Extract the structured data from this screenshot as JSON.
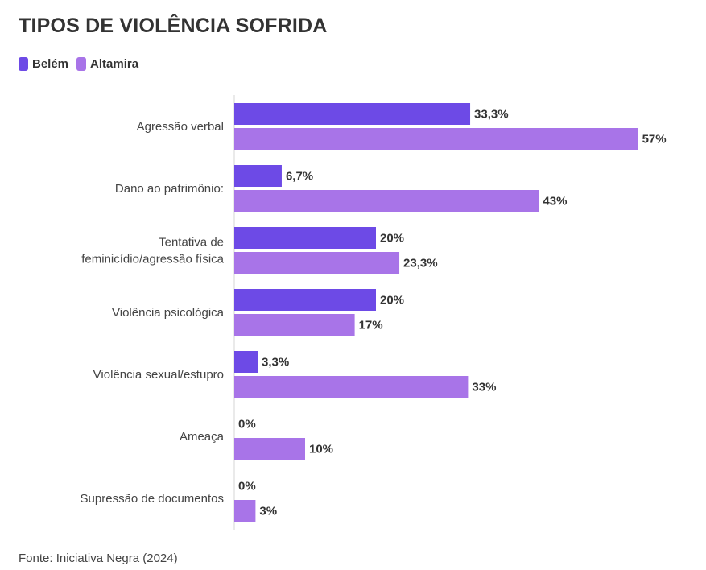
{
  "colors": {
    "belem": "#6d4ae6",
    "altamira": "#a874e8"
  },
  "chart_data": {
    "type": "bar",
    "orientation": "horizontal",
    "title": "TIPOS DE VIOLÊNCIA SOFRIDA",
    "legend_position": "top-left",
    "categories": [
      "Agressão verbal",
      "Dano ao patrimônio:",
      "Tentativa de\nfeminicídio/agressão física",
      "Violência psicológica",
      "Violência sexual/estupro",
      "Ameaça",
      "Supressão de documentos"
    ],
    "series": [
      {
        "name": "Belém",
        "values": [
          33.3,
          6.7,
          20,
          20,
          3.3,
          0,
          0
        ],
        "labels": [
          "33,3%",
          "6,7%",
          "20%",
          "20%",
          "3,3%",
          "0%",
          "0%"
        ]
      },
      {
        "name": "Altamira",
        "values": [
          57,
          43,
          23.3,
          17,
          33,
          10,
          3
        ],
        "labels": [
          "57%",
          "43%",
          "23,3%",
          "17%",
          "33%",
          "10%",
          "3%"
        ]
      }
    ],
    "xlim": [
      0,
      100
    ],
    "grid": false,
    "source": "Fonte: Iniciativa Negra (2024)"
  }
}
